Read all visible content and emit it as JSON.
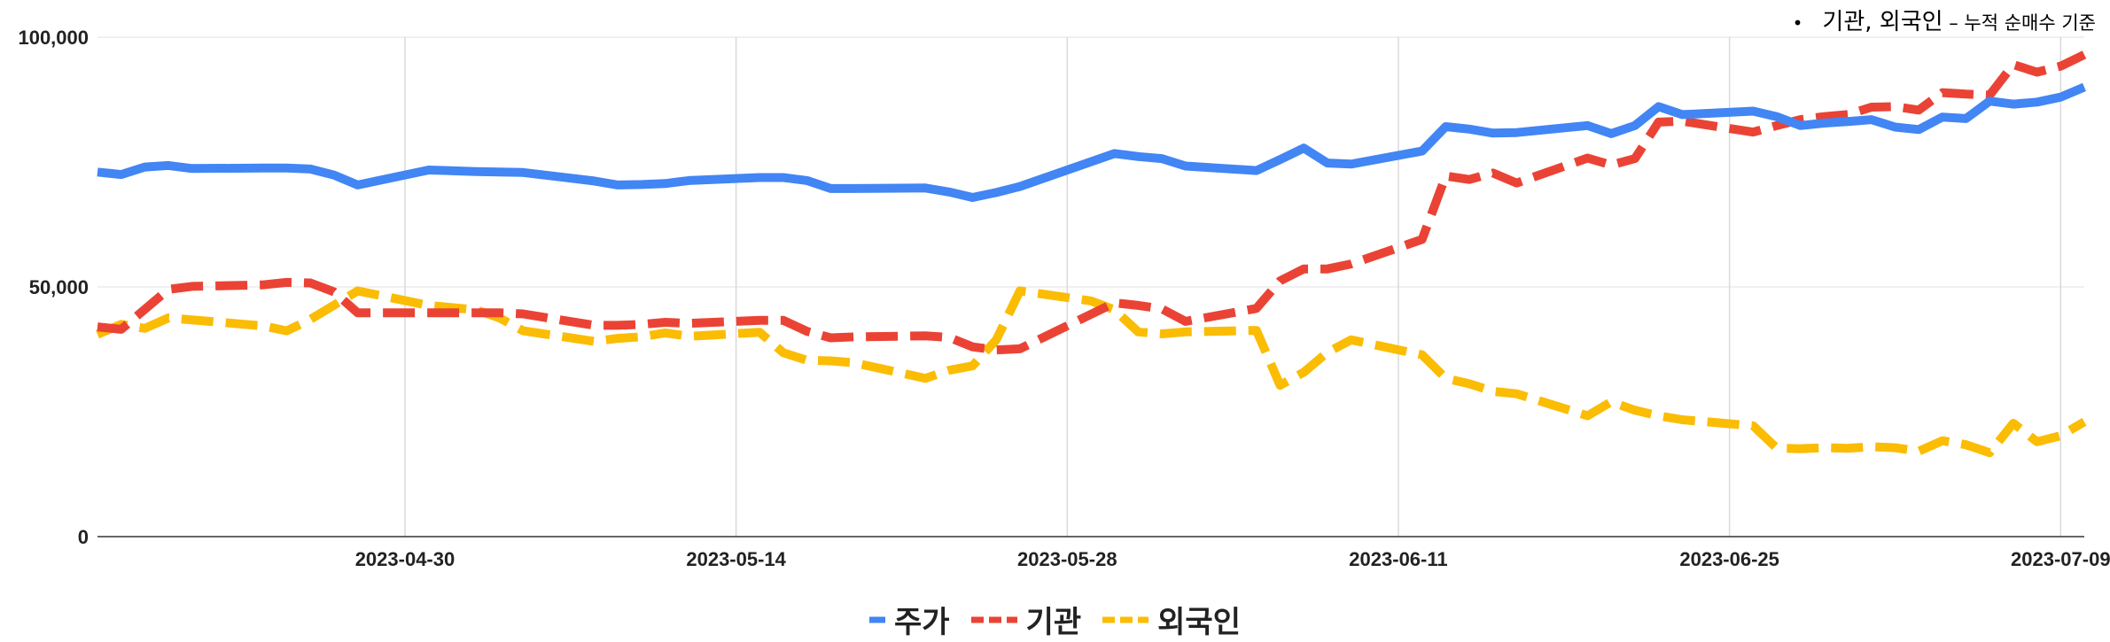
{
  "chart_data": {
    "type": "line",
    "annotation": {
      "bullet": "•",
      "main": "기관, 외국인",
      "sep": " – ",
      "sub": "누적 순매수 기준"
    },
    "x_ticks": [
      "2023-04-30",
      "2023-05-14",
      "2023-05-28",
      "2023-06-11",
      "2023-06-25",
      "2023-07-09"
    ],
    "x_start": "2023-04-17",
    "x_end": "2023-07-10",
    "ylim": [
      0,
      100000
    ],
    "y_ticks": [
      "0",
      "50,000",
      "100,000"
    ],
    "y_tick_values": [
      0,
      50000,
      100000
    ],
    "grid": true,
    "legend_position": "bottom",
    "series": [
      {
        "name": "주가",
        "color": "#4285F4",
        "style": "solid",
        "points": [
          [
            "2023-04-17",
            73000
          ],
          [
            "2023-04-18",
            72500
          ],
          [
            "2023-04-19",
            74000
          ],
          [
            "2023-04-20",
            74300
          ],
          [
            "2023-04-21",
            73700
          ],
          [
            "2023-04-24",
            73800
          ],
          [
            "2023-04-25",
            73800
          ],
          [
            "2023-04-26",
            73600
          ],
          [
            "2023-04-27",
            72400
          ],
          [
            "2023-04-28",
            70400
          ],
          [
            "2023-05-01",
            73400
          ],
          [
            "2023-05-03",
            73100
          ],
          [
            "2023-05-04",
            73000
          ],
          [
            "2023-05-05",
            72900
          ],
          [
            "2023-05-08",
            71200
          ],
          [
            "2023-05-09",
            70400
          ],
          [
            "2023-05-10",
            70500
          ],
          [
            "2023-05-11",
            70700
          ],
          [
            "2023-05-12",
            71300
          ],
          [
            "2023-05-15",
            71900
          ],
          [
            "2023-05-16",
            71900
          ],
          [
            "2023-05-17",
            71300
          ],
          [
            "2023-05-18",
            69700
          ],
          [
            "2023-05-19",
            69700
          ],
          [
            "2023-05-22",
            69800
          ],
          [
            "2023-05-23",
            69000
          ],
          [
            "2023-05-24",
            67900
          ],
          [
            "2023-05-25",
            68900
          ],
          [
            "2023-05-26",
            70100
          ],
          [
            "2023-05-30",
            76700
          ],
          [
            "2023-05-31",
            76100
          ],
          [
            "2023-06-01",
            75700
          ],
          [
            "2023-06-02",
            74200
          ],
          [
            "2023-06-05",
            73300
          ],
          [
            "2023-06-06",
            75500
          ],
          [
            "2023-06-07",
            77800
          ],
          [
            "2023-06-08",
            74800
          ],
          [
            "2023-06-09",
            74600
          ],
          [
            "2023-06-12",
            77200
          ],
          [
            "2023-06-13",
            82100
          ],
          [
            "2023-06-14",
            81600
          ],
          [
            "2023-06-15",
            80800
          ],
          [
            "2023-06-16",
            80900
          ],
          [
            "2023-06-19",
            82300
          ],
          [
            "2023-06-20",
            80700
          ],
          [
            "2023-06-21",
            82300
          ],
          [
            "2023-06-22",
            86100
          ],
          [
            "2023-06-23",
            84500
          ],
          [
            "2023-06-26",
            85200
          ],
          [
            "2023-06-27",
            84100
          ],
          [
            "2023-06-28",
            82300
          ],
          [
            "2023-06-29",
            82800
          ],
          [
            "2023-06-30",
            83100
          ],
          [
            "2023-07-01",
            83500
          ],
          [
            "2023-07-02",
            82000
          ],
          [
            "2023-07-03",
            81500
          ],
          [
            "2023-07-04",
            84000
          ],
          [
            "2023-07-05",
            83700
          ],
          [
            "2023-07-06",
            87200
          ],
          [
            "2023-07-07",
            86600
          ],
          [
            "2023-07-08",
            87000
          ],
          [
            "2023-07-09",
            88000
          ],
          [
            "2023-07-10",
            90000
          ]
        ]
      },
      {
        "name": "기관",
        "color": "#EA4335",
        "style": "dashed",
        "points": [
          [
            "2023-04-17",
            42000
          ],
          [
            "2023-04-18",
            41500
          ],
          [
            "2023-04-20",
            49500
          ],
          [
            "2023-04-21",
            50100
          ],
          [
            "2023-04-24",
            50400
          ],
          [
            "2023-04-25",
            50900
          ],
          [
            "2023-04-26",
            50800
          ],
          [
            "2023-04-27",
            49000
          ],
          [
            "2023-04-28",
            44800
          ],
          [
            "2023-05-01",
            44800
          ],
          [
            "2023-05-04",
            44800
          ],
          [
            "2023-05-05",
            44600
          ],
          [
            "2023-05-08",
            42300
          ],
          [
            "2023-05-09",
            42300
          ],
          [
            "2023-05-10",
            42500
          ],
          [
            "2023-05-11",
            42900
          ],
          [
            "2023-05-12",
            42700
          ],
          [
            "2023-05-15",
            43300
          ],
          [
            "2023-05-16",
            43300
          ],
          [
            "2023-05-17",
            41100
          ],
          [
            "2023-05-18",
            39800
          ],
          [
            "2023-05-19",
            40000
          ],
          [
            "2023-05-22",
            40200
          ],
          [
            "2023-05-23",
            39900
          ],
          [
            "2023-05-24",
            38000
          ],
          [
            "2023-05-25",
            37400
          ],
          [
            "2023-05-26",
            37600
          ],
          [
            "2023-05-30",
            46800
          ],
          [
            "2023-05-31",
            46300
          ],
          [
            "2023-06-01",
            45600
          ],
          [
            "2023-06-02",
            43100
          ],
          [
            "2023-06-05",
            45700
          ],
          [
            "2023-06-06",
            51200
          ],
          [
            "2023-06-07",
            53600
          ],
          [
            "2023-06-08",
            53600
          ],
          [
            "2023-06-09",
            54600
          ],
          [
            "2023-06-12",
            59500
          ],
          [
            "2023-06-13",
            72200
          ],
          [
            "2023-06-14",
            71500
          ],
          [
            "2023-06-15",
            72800
          ],
          [
            "2023-06-16",
            70800
          ],
          [
            "2023-06-19",
            75800
          ],
          [
            "2023-06-20",
            74400
          ],
          [
            "2023-06-21",
            75700
          ],
          [
            "2023-06-22",
            83000
          ],
          [
            "2023-06-23",
            83200
          ],
          [
            "2023-06-26",
            81000
          ],
          [
            "2023-06-27",
            82300
          ],
          [
            "2023-06-28",
            83500
          ],
          [
            "2023-06-29",
            84100
          ],
          [
            "2023-06-30",
            84500
          ],
          [
            "2023-07-01",
            86000
          ],
          [
            "2023-07-02",
            86100
          ],
          [
            "2023-07-03",
            85400
          ],
          [
            "2023-07-04",
            88900
          ],
          [
            "2023-07-05",
            88600
          ],
          [
            "2023-07-06",
            88400
          ],
          [
            "2023-07-07",
            94500
          ],
          [
            "2023-07-08",
            93000
          ],
          [
            "2023-07-09",
            94200
          ],
          [
            "2023-07-10",
            96500
          ]
        ]
      },
      {
        "name": "외국인",
        "color": "#FBBC04",
        "style": "dashed",
        "points": [
          [
            "2023-04-17",
            40500
          ],
          [
            "2023-04-18",
            42500
          ],
          [
            "2023-04-19",
            41700
          ],
          [
            "2023-04-20",
            43800
          ],
          [
            "2023-04-24",
            42200
          ],
          [
            "2023-04-25",
            41200
          ],
          [
            "2023-04-26",
            43500
          ],
          [
            "2023-04-28",
            49200
          ],
          [
            "2023-05-01",
            46300
          ],
          [
            "2023-05-03",
            45400
          ],
          [
            "2023-05-04",
            43800
          ],
          [
            "2023-05-05",
            41200
          ],
          [
            "2023-05-08",
            39100
          ],
          [
            "2023-05-09",
            39700
          ],
          [
            "2023-05-10",
            40000
          ],
          [
            "2023-05-11",
            40800
          ],
          [
            "2023-05-12",
            40100
          ],
          [
            "2023-05-15",
            40900
          ],
          [
            "2023-05-16",
            36800
          ],
          [
            "2023-05-17",
            35300
          ],
          [
            "2023-05-18",
            35200
          ],
          [
            "2023-05-19",
            34800
          ],
          [
            "2023-05-22",
            31700
          ],
          [
            "2023-05-23",
            33300
          ],
          [
            "2023-05-24",
            34200
          ],
          [
            "2023-05-25",
            39400
          ],
          [
            "2023-05-26",
            49200
          ],
          [
            "2023-05-29",
            47200
          ],
          [
            "2023-05-30",
            45400
          ],
          [
            "2023-05-31",
            41000
          ],
          [
            "2023-06-01",
            40600
          ],
          [
            "2023-06-02",
            41000
          ],
          [
            "2023-06-05",
            41300
          ],
          [
            "2023-06-06",
            30300
          ],
          [
            "2023-06-07",
            32900
          ],
          [
            "2023-06-08",
            36900
          ],
          [
            "2023-06-09",
            39400
          ],
          [
            "2023-06-12",
            36400
          ],
          [
            "2023-06-13",
            31700
          ],
          [
            "2023-06-14",
            30600
          ],
          [
            "2023-06-15",
            29100
          ],
          [
            "2023-06-16",
            28600
          ],
          [
            "2023-06-19",
            24200
          ],
          [
            "2023-06-20",
            27000
          ],
          [
            "2023-06-21",
            25300
          ],
          [
            "2023-06-22",
            24200
          ],
          [
            "2023-06-23",
            23400
          ],
          [
            "2023-06-26",
            22200
          ],
          [
            "2023-06-27",
            17700
          ],
          [
            "2023-06-28",
            17600
          ],
          [
            "2023-06-29",
            17800
          ],
          [
            "2023-06-30",
            17700
          ],
          [
            "2023-07-01",
            18000
          ],
          [
            "2023-07-02",
            17800
          ],
          [
            "2023-07-03",
            17100
          ],
          [
            "2023-07-04",
            19200
          ],
          [
            "2023-07-05",
            18400
          ],
          [
            "2023-07-06",
            16800
          ],
          [
            "2023-07-07",
            22700
          ],
          [
            "2023-07-08",
            19000
          ],
          [
            "2023-07-09",
            20200
          ],
          [
            "2023-07-10",
            23000
          ]
        ]
      }
    ]
  }
}
